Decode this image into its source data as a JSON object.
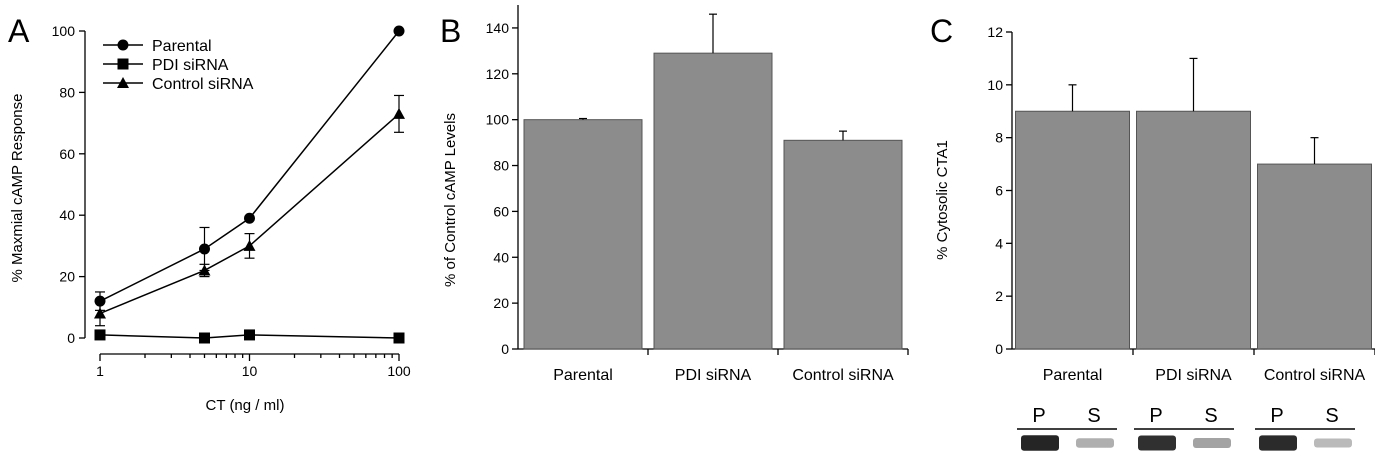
{
  "chart_data": [
    {
      "panel": "A",
      "type": "line",
      "xscale": "log",
      "xlabel": "CT (ng / ml)",
      "ylabel": "% Maxmial cAMP Response",
      "xlim": [
        1,
        100
      ],
      "ylim": [
        0,
        100
      ],
      "xticks": [
        "1",
        "10",
        "100"
      ],
      "yticks": [
        "0",
        "20",
        "40",
        "60",
        "80",
        "100"
      ],
      "x": [
        1,
        5,
        10,
        100
      ],
      "legend_position": "top-left",
      "series": [
        {
          "name": "Parental",
          "marker": "circle",
          "values": [
            12,
            29,
            39,
            100
          ],
          "err": [
            3,
            7,
            0,
            0
          ]
        },
        {
          "name": "PDI siRNA",
          "marker": "square",
          "values": [
            1,
            0,
            1,
            0
          ],
          "err": [
            0,
            0,
            0,
            0
          ]
        },
        {
          "name": "Control siRNA",
          "marker": "triangle",
          "values": [
            8,
            22,
            30,
            73
          ],
          "err": [
            4,
            2,
            4,
            6
          ]
        }
      ]
    },
    {
      "panel": "B",
      "type": "bar",
      "ylabel": "% of Control cAMP Levels",
      "ylim": [
        0,
        150
      ],
      "yticks": [
        "0",
        "20",
        "40",
        "60",
        "80",
        "100",
        "120",
        "140"
      ],
      "categories": [
        "Parental",
        "PDI siRNA",
        "Control siRNA"
      ],
      "values": [
        100,
        129,
        91
      ],
      "err": [
        0.5,
        17,
        4
      ],
      "bar_color": "#8c8c8c"
    },
    {
      "panel": "C",
      "type": "bar",
      "ylabel": "% Cytosolic CTA1",
      "ylim": [
        0,
        12
      ],
      "yticks": [
        "0",
        "2",
        "4",
        "6",
        "8",
        "10",
        "12"
      ],
      "categories": [
        "Parental",
        "PDI siRNA",
        "Control siRNA"
      ],
      "values": [
        9,
        9,
        7
      ],
      "err": [
        1,
        2,
        1
      ],
      "bar_color": "#8c8c8c"
    }
  ],
  "blot": {
    "lanes": [
      "P",
      "S"
    ],
    "groups": 3,
    "intensity": [
      [
        0.95,
        0.35
      ],
      [
        0.9,
        0.4
      ],
      [
        0.92,
        0.3
      ]
    ]
  }
}
